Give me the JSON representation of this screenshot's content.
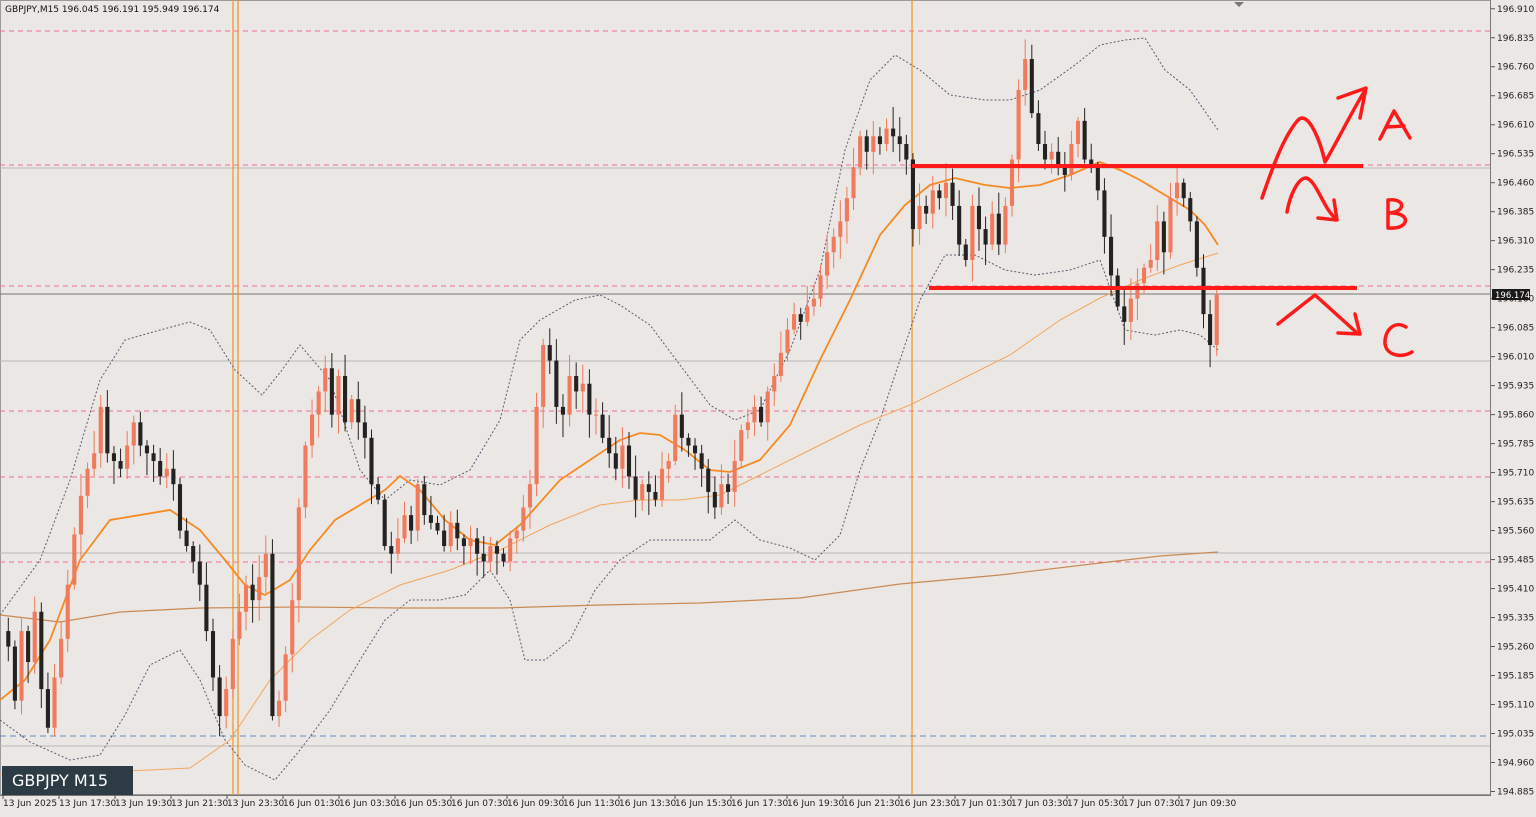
{
  "chart_data": {
    "type": "candlestick",
    "symbol_header": "GBPJPY,M15  196.045 196.191 195.949 196.174",
    "badge": "GBPJPY M15",
    "current_price": "196.174",
    "ylim": [
      194.885,
      196.935
    ],
    "y_ticks": [
      "196.910",
      "196.835",
      "196.760",
      "196.685",
      "196.610",
      "196.535",
      "196.460",
      "196.385",
      "196.310",
      "196.235",
      "196.160",
      "196.085",
      "196.010",
      "195.935",
      "195.860",
      "195.785",
      "195.710",
      "195.635",
      "195.560",
      "195.485",
      "195.410",
      "195.335",
      "195.260",
      "195.185",
      "195.110",
      "195.035",
      "194.960",
      "194.885"
    ],
    "x_ticks": [
      "13 Jun 2025",
      "13 Jun 17:30",
      "13 Jun 19:30",
      "13 Jun 21:30",
      "13 Jun 23:30",
      "16 Jun 01:30",
      "16 Jun 03:30",
      "16 Jun 05:30",
      "16 Jun 07:30",
      "16 Jun 09:30",
      "16 Jun 11:30",
      "16 Jun 13:30",
      "16 Jun 15:30",
      "16 Jun 17:30",
      "16 Jun 19:30",
      "16 Jun 21:30",
      "16 Jun 23:30",
      "17 Jun 01:30",
      "17 Jun 03:30",
      "17 Jun 05:30",
      "17 Jun 07:30",
      "17 Jun 09:30"
    ],
    "closes": [
      195.26,
      195.12,
      195.3,
      195.22,
      195.35,
      195.15,
      195.05,
      195.18,
      195.28,
      195.42,
      195.55,
      195.65,
      195.72,
      195.76,
      195.88,
      195.76,
      195.74,
      195.72,
      195.78,
      195.84,
      195.78,
      195.76,
      195.74,
      195.7,
      195.72,
      195.68,
      195.56,
      195.52,
      195.48,
      195.42,
      195.3,
      195.18,
      195.08,
      195.15,
      195.28,
      195.35,
      195.42,
      195.38,
      195.44,
      195.5,
      195.08,
      195.12,
      195.24,
      195.38,
      195.62,
      195.78,
      195.86,
      195.92,
      195.98,
      195.86,
      195.96,
      195.84,
      195.9,
      195.84,
      195.8,
      195.68,
      195.64,
      195.52,
      195.5,
      195.54,
      195.6,
      195.56,
      195.68,
      195.6,
      195.58,
      195.56,
      195.52,
      195.58,
      195.54,
      195.52,
      195.54,
      195.5,
      195.48,
      195.52,
      195.5,
      195.48,
      195.54,
      195.56,
      195.62,
      195.68,
      195.88,
      196.04,
      196.0,
      195.88,
      195.86,
      195.96,
      195.92,
      195.94,
      195.86,
      195.86,
      195.8,
      195.76,
      195.72,
      195.78,
      195.7,
      195.64,
      195.68,
      195.66,
      195.64,
      195.72,
      195.74,
      195.86,
      195.8,
      195.78,
      195.76,
      195.72,
      195.66,
      195.62,
      195.68,
      195.66,
      195.74,
      195.82,
      195.84,
      195.88,
      195.84,
      195.92,
      195.96,
      196.02,
      196.08,
      196.12,
      196.1,
      196.14,
      196.16,
      196.22,
      196.28,
      196.32,
      196.36,
      196.42,
      196.5,
      196.58,
      196.54,
      196.58,
      196.56,
      196.6,
      196.58,
      196.56,
      196.52,
      196.34,
      196.4,
      196.38,
      196.44,
      196.42,
      196.46,
      196.4,
      196.3,
      196.26,
      196.4,
      196.34,
      196.3,
      196.38,
      196.3,
      196.4,
      196.52,
      196.7,
      196.78,
      196.64,
      196.56,
      196.52,
      196.54,
      196.5,
      196.48,
      196.56,
      196.62,
      196.52,
      196.5,
      196.44,
      196.32,
      196.22,
      196.14,
      196.1,
      196.16,
      196.2,
      196.24,
      196.26,
      196.36,
      196.28,
      196.42,
      196.46,
      196.42,
      196.36,
      196.24,
      196.12,
      196.04,
      196.17
    ],
    "annotations": [
      "A",
      "B",
      "C"
    ]
  },
  "colors": {
    "bull": "#f07a5c",
    "bear": "#222222",
    "ma_fast": "#f58a22",
    "ma_slow": "#f5a55a",
    "ma_long": "#c88a55",
    "bollinger": "#5a5a70",
    "key_level": "#ff1a1a",
    "pink_level": "#f06e96",
    "vline": "#f7931e",
    "blue_level": "#5b8fc4"
  }
}
